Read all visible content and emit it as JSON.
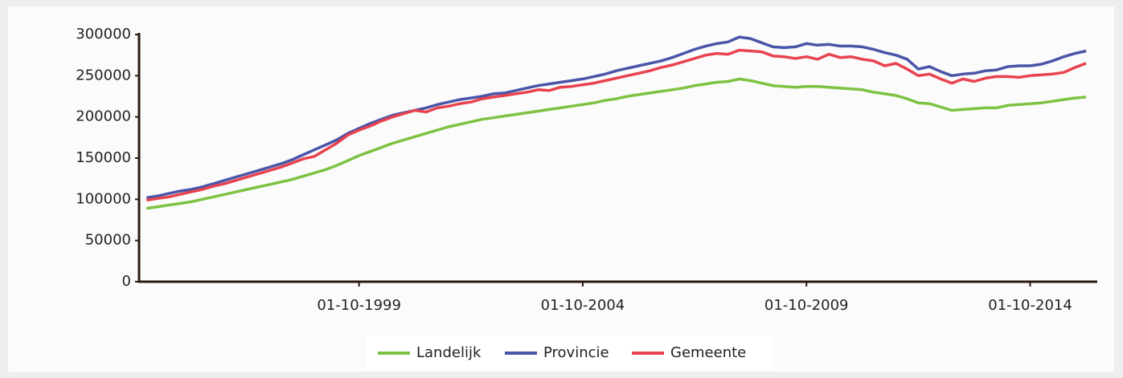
{
  "chart_data": {
    "type": "line",
    "x": [
      "01-01-1995",
      "01-04-1995",
      "01-07-1995",
      "01-10-1995",
      "01-01-1996",
      "01-04-1996",
      "01-07-1996",
      "01-10-1996",
      "01-01-1997",
      "01-04-1997",
      "01-07-1997",
      "01-10-1997",
      "01-01-1998",
      "01-04-1998",
      "01-07-1998",
      "01-10-1998",
      "01-01-1999",
      "01-04-1999",
      "01-07-1999",
      "01-10-1999",
      "01-01-2000",
      "01-04-2000",
      "01-07-2000",
      "01-10-2000",
      "01-01-2001",
      "01-04-2001",
      "01-07-2001",
      "01-10-2001",
      "01-01-2002",
      "01-04-2002",
      "01-07-2002",
      "01-10-2002",
      "01-01-2003",
      "01-04-2003",
      "01-07-2003",
      "01-10-2003",
      "01-01-2004",
      "01-04-2004",
      "01-07-2004",
      "01-10-2004",
      "01-01-2005",
      "01-04-2005",
      "01-07-2005",
      "01-10-2005",
      "01-01-2006",
      "01-04-2006",
      "01-07-2006",
      "01-10-2006",
      "01-01-2007",
      "01-04-2007",
      "01-07-2007",
      "01-10-2007",
      "01-01-2008",
      "01-04-2008",
      "01-07-2008",
      "01-10-2008",
      "01-01-2009",
      "01-04-2009",
      "01-07-2009",
      "01-10-2009",
      "01-01-2010",
      "01-04-2010",
      "01-07-2010",
      "01-10-2010",
      "01-01-2011",
      "01-04-2011",
      "01-07-2011",
      "01-10-2011",
      "01-01-2012",
      "01-04-2012",
      "01-07-2012",
      "01-10-2012",
      "01-01-2013",
      "01-04-2013",
      "01-07-2013",
      "01-10-2013",
      "01-01-2014",
      "01-04-2014",
      "01-07-2014",
      "01-10-2014",
      "01-01-2015",
      "01-04-2015",
      "01-07-2015",
      "01-10-2015",
      "01-01-2016"
    ],
    "series": [
      {
        "name": "Landelijk",
        "color": "#7dc242",
        "values": [
          89000,
          91000,
          93000,
          95000,
          97000,
          100000,
          103000,
          106000,
          109000,
          112000,
          115000,
          118000,
          121000,
          124000,
          128000,
          132000,
          136000,
          141000,
          147000,
          153000,
          158000,
          163000,
          168000,
          172000,
          176000,
          180000,
          184000,
          188000,
          191000,
          194000,
          197000,
          199000,
          201000,
          203000,
          205000,
          207000,
          209000,
          211000,
          213000,
          215000,
          217000,
          220000,
          222000,
          225000,
          227000,
          229000,
          231000,
          233000,
          235000,
          238000,
          240000,
          242000,
          243000,
          246000,
          244000,
          241000,
          238000,
          237000,
          236000,
          237000,
          237000,
          236000,
          235000,
          234000,
          233000,
          230000,
          228000,
          226000,
          222000,
          217000,
          216000,
          212000,
          208000,
          209000,
          210000,
          211000,
          211000,
          214000,
          215000,
          216000,
          217000,
          219000,
          221000,
          223000,
          224000
        ]
      },
      {
        "name": "Provincie",
        "color": "#4a55a8",
        "values": [
          102000,
          104000,
          107000,
          110000,
          112000,
          115000,
          119000,
          123000,
          127000,
          131000,
          135000,
          139000,
          143000,
          148000,
          154000,
          160000,
          166000,
          172000,
          180000,
          186000,
          192000,
          197000,
          202000,
          205000,
          208000,
          211000,
          215000,
          218000,
          221000,
          223000,
          225000,
          228000,
          229000,
          232000,
          235000,
          238000,
          240000,
          242000,
          244000,
          246000,
          249000,
          252000,
          256000,
          259000,
          262000,
          265000,
          268000,
          272000,
          277000,
          282000,
          286000,
          289000,
          291000,
          297000,
          295000,
          290000,
          285000,
          284000,
          285000,
          289000,
          287000,
          288000,
          286000,
          286000,
          285000,
          282000,
          278000,
          275000,
          270000,
          258000,
          261000,
          255000,
          250000,
          252000,
          253000,
          256000,
          257000,
          261000,
          262000,
          262000,
          264000,
          268000,
          273000,
          277000,
          280000
        ]
      },
      {
        "name": "Gemeente",
        "color": "#e8424f",
        "values": [
          99000,
          101000,
          103000,
          106000,
          109000,
          112000,
          116000,
          119000,
          123000,
          127000,
          131000,
          135000,
          139000,
          144000,
          149000,
          152000,
          160000,
          168000,
          178000,
          184000,
          189000,
          195000,
          200000,
          204000,
          208000,
          206000,
          211000,
          213000,
          216000,
          218000,
          222000,
          224000,
          226000,
          228000,
          230000,
          233000,
          232000,
          236000,
          237000,
          239000,
          241000,
          244000,
          247000,
          250000,
          253000,
          256000,
          260000,
          263000,
          267000,
          271000,
          275000,
          277000,
          276000,
          281000,
          280000,
          279000,
          274000,
          273000,
          271000,
          273000,
          270000,
          276000,
          272000,
          273000,
          270000,
          268000,
          262000,
          265000,
          258000,
          250000,
          252000,
          246000,
          241000,
          246000,
          243000,
          247000,
          249000,
          249000,
          248000,
          250000,
          251000,
          252000,
          254000,
          260000,
          265000
        ]
      }
    ],
    "xlim": [
      "01-11-1994",
      "01-04-2016"
    ],
    "xticks": [
      "01-10-1999",
      "01-10-2004",
      "01-10-2009",
      "01-10-2014"
    ],
    "ylim": [
      0,
      300000
    ],
    "yticks": [
      0,
      50000,
      100000,
      150000,
      200000,
      250000,
      300000
    ],
    "legend": "bottom"
  }
}
